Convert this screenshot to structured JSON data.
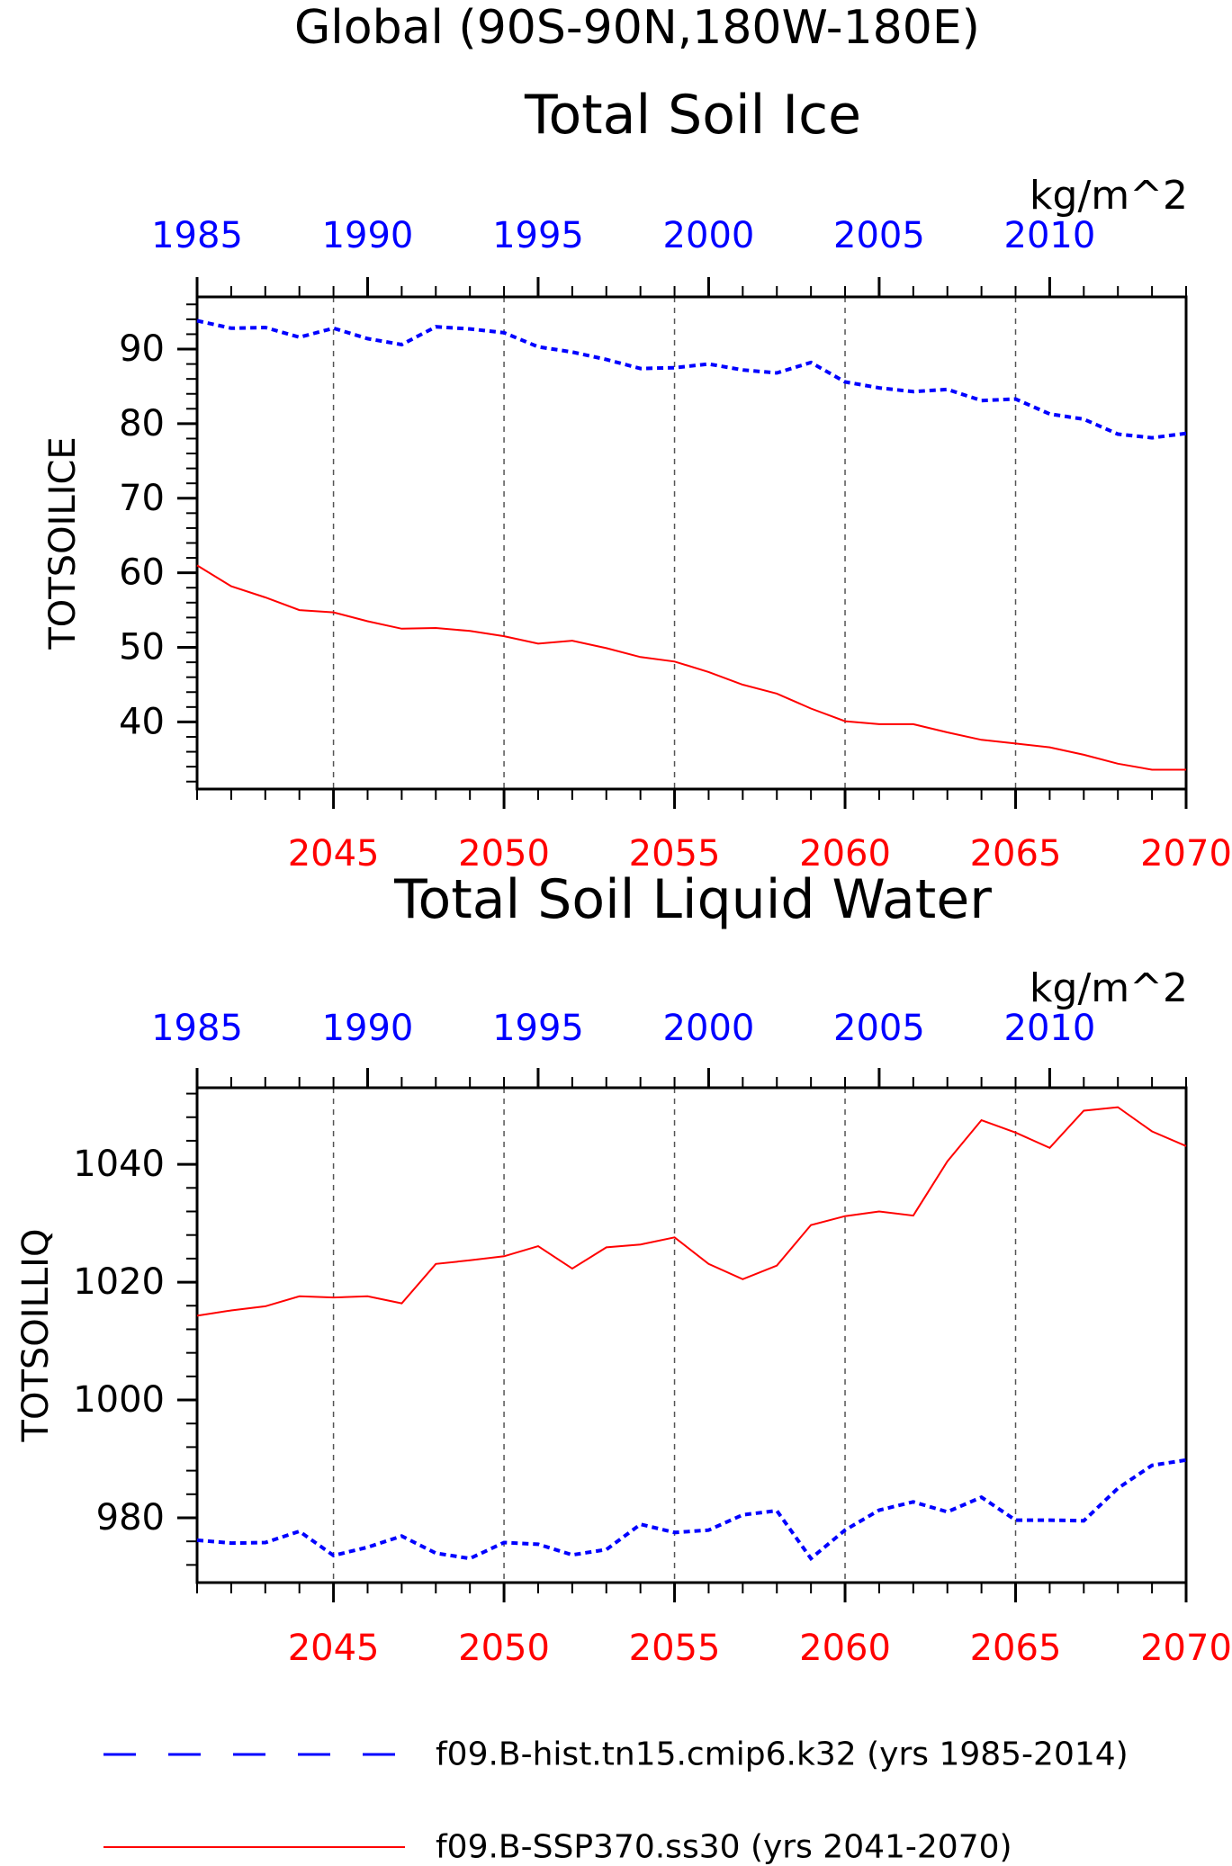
{
  "figure": {
    "title_line1": "Global (90S-90N,180W-180E)"
  },
  "legend": [
    {
      "label": "f09.B-hist.tn15.cmip6.k32 (yrs 1985-2014)",
      "color": "#0000ff",
      "style": "dashed"
    },
    {
      "label": "f09.B-SSP370.ss30 (yrs 2041-2070)",
      "color": "#ff0000",
      "style": "solid"
    }
  ],
  "chart_data": [
    {
      "type": "line",
      "title": "Total Soil Ice",
      "ylabel": "TOTSOILICE",
      "units": "kg/m^2",
      "ylim": [
        31,
        97
      ],
      "yticks": [
        40,
        50,
        60,
        70,
        80,
        90
      ],
      "grid": "dashed vertical lines at bottom-axis major ticks",
      "top_axis": {
        "color": "#0000ff",
        "ticks": [
          "1985",
          "1990",
          "1995",
          "2000",
          "2005",
          "2010"
        ]
      },
      "bottom_axis": {
        "color": "#ff0000",
        "ticks": [
          "2045",
          "2050",
          "2055",
          "2060",
          "2065",
          "2070"
        ]
      },
      "series": [
        {
          "name": "f09.B-hist.tn15.cmip6.k32 (yrs 1985-2014)",
          "color": "#0000ff",
          "style": "dashed",
          "x": [
            1985,
            1986,
            1987,
            1988,
            1989,
            1990,
            1991,
            1992,
            1993,
            1994,
            1995,
            1996,
            1997,
            1998,
            1999,
            2000,
            2001,
            2002,
            2003,
            2004,
            2005,
            2006,
            2007,
            2008,
            2009,
            2010,
            2011,
            2012,
            2013,
            2014
          ],
          "values": [
            93.8,
            92.8,
            92.9,
            91.6,
            92.8,
            91.4,
            90.6,
            93.0,
            92.7,
            92.2,
            90.3,
            89.6,
            88.6,
            87.4,
            87.5,
            88.0,
            87.2,
            86.8,
            88.2,
            85.6,
            84.8,
            84.3,
            84.6,
            83.1,
            83.3,
            81.3,
            80.6,
            78.6,
            78.1,
            78.7
          ]
        },
        {
          "name": "f09.B-SSP370.ss30 (yrs 2041-2070)",
          "color": "#ff0000",
          "style": "solid",
          "x": [
            2041,
            2042,
            2043,
            2044,
            2045,
            2046,
            2047,
            2048,
            2049,
            2050,
            2051,
            2052,
            2053,
            2054,
            2055,
            2056,
            2057,
            2058,
            2059,
            2060,
            2061,
            2062,
            2063,
            2064,
            2065,
            2066,
            2067,
            2068,
            2069,
            2070
          ],
          "values": [
            61.0,
            58.2,
            56.7,
            55.0,
            54.7,
            53.5,
            52.5,
            52.6,
            52.2,
            51.5,
            50.5,
            50.9,
            49.9,
            48.7,
            48.1,
            46.7,
            45.0,
            43.8,
            41.8,
            40.1,
            39.7,
            39.7,
            38.6,
            37.6,
            37.1,
            36.6,
            35.6,
            34.4,
            33.6,
            33.6
          ]
        }
      ]
    },
    {
      "type": "line",
      "title": "Total Soil Liquid Water",
      "ylabel": "TOTSOILLIQ",
      "units": "kg/m^2",
      "ylim": [
        969,
        1053
      ],
      "yticks": [
        980,
        1000,
        1020,
        1040
      ],
      "grid": "dashed vertical lines at bottom-axis major ticks",
      "top_axis": {
        "color": "#0000ff",
        "ticks": [
          "1985",
          "1990",
          "1995",
          "2000",
          "2005",
          "2010"
        ]
      },
      "bottom_axis": {
        "color": "#ff0000",
        "ticks": [
          "2045",
          "2050",
          "2055",
          "2060",
          "2065",
          "2070"
        ]
      },
      "series": [
        {
          "name": "f09.B-hist.tn15.cmip6.k32 (yrs 1985-2014)",
          "color": "#0000ff",
          "style": "dashed",
          "x": [
            1985,
            1986,
            1987,
            1988,
            1989,
            1990,
            1991,
            1992,
            1993,
            1994,
            1995,
            1996,
            1997,
            1998,
            1999,
            2000,
            2001,
            2002,
            2003,
            2004,
            2005,
            2006,
            2007,
            2008,
            2009,
            2010,
            2011,
            2012,
            2013,
            2014
          ],
          "values": [
            976.2,
            975.7,
            975.8,
            977.7,
            973.6,
            975.0,
            976.9,
            974.0,
            973.1,
            975.8,
            975.5,
            973.7,
            974.6,
            978.9,
            977.5,
            977.9,
            980.5,
            981.2,
            973.1,
            977.9,
            981.3,
            982.7,
            981.0,
            983.5,
            979.6,
            979.6,
            979.5,
            985.0,
            988.9,
            989.8
          ]
        },
        {
          "name": "f09.B-SSP370.ss30 (yrs 2041-2070)",
          "color": "#ff0000",
          "style": "solid",
          "x": [
            2041,
            2042,
            2043,
            2044,
            2045,
            2046,
            2047,
            2048,
            2049,
            2050,
            2051,
            2052,
            2053,
            2054,
            2055,
            2056,
            2057,
            2058,
            2059,
            2060,
            2061,
            2062,
            2063,
            2064,
            2065,
            2066,
            2067,
            2068,
            2069,
            2070
          ],
          "values": [
            1014.3,
            1015.2,
            1015.9,
            1017.6,
            1017.4,
            1017.6,
            1016.4,
            1023.1,
            1023.7,
            1024.4,
            1026.1,
            1022.3,
            1025.9,
            1026.4,
            1027.6,
            1023.1,
            1020.5,
            1022.8,
            1029.7,
            1031.2,
            1032.0,
            1031.3,
            1040.5,
            1047.5,
            1045.4,
            1042.8,
            1049.1,
            1049.7,
            1045.6,
            1043.1
          ]
        }
      ]
    }
  ]
}
